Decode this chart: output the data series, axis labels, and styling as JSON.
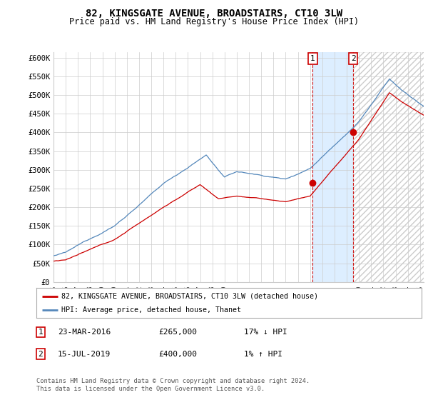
{
  "title": "82, KINGSGATE AVENUE, BROADSTAIRS, CT10 3LW",
  "subtitle": "Price paid vs. HM Land Registry's House Price Index (HPI)",
  "legend_property": "82, KINGSGATE AVENUE, BROADSTAIRS, CT10 3LW (detached house)",
  "legend_hpi": "HPI: Average price, detached house, Thanet",
  "ylabel_ticks": [
    0,
    50000,
    100000,
    150000,
    200000,
    250000,
    300000,
    350000,
    400000,
    450000,
    500000,
    550000,
    600000
  ],
  "ylabel_labels": [
    "£0",
    "£50K",
    "£100K",
    "£150K",
    "£200K",
    "£250K",
    "£300K",
    "£350K",
    "£400K",
    "£450K",
    "£500K",
    "£550K",
    "£600K"
  ],
  "ylim": [
    0,
    615000
  ],
  "transaction1": {
    "date": "23-MAR-2016",
    "price": 265000,
    "hpi_diff": "17% ↓ HPI",
    "label": "1",
    "year": 2016.22
  },
  "transaction2": {
    "date": "15-JUL-2019",
    "price": 400000,
    "hpi_diff": "1% ↑ HPI",
    "label": "2",
    "year": 2019.54
  },
  "footer": "Contains HM Land Registry data © Crown copyright and database right 2024.\nThis data is licensed under the Open Government Licence v3.0.",
  "property_color": "#cc0000",
  "hpi_color": "#5588bb",
  "shade_color": "#ddeeff",
  "background_color": "#ffffff",
  "grid_color": "#cccccc",
  "marker_box_color": "#cc0000",
  "xlim_left": 1995.0,
  "xlim_right": 2025.3
}
